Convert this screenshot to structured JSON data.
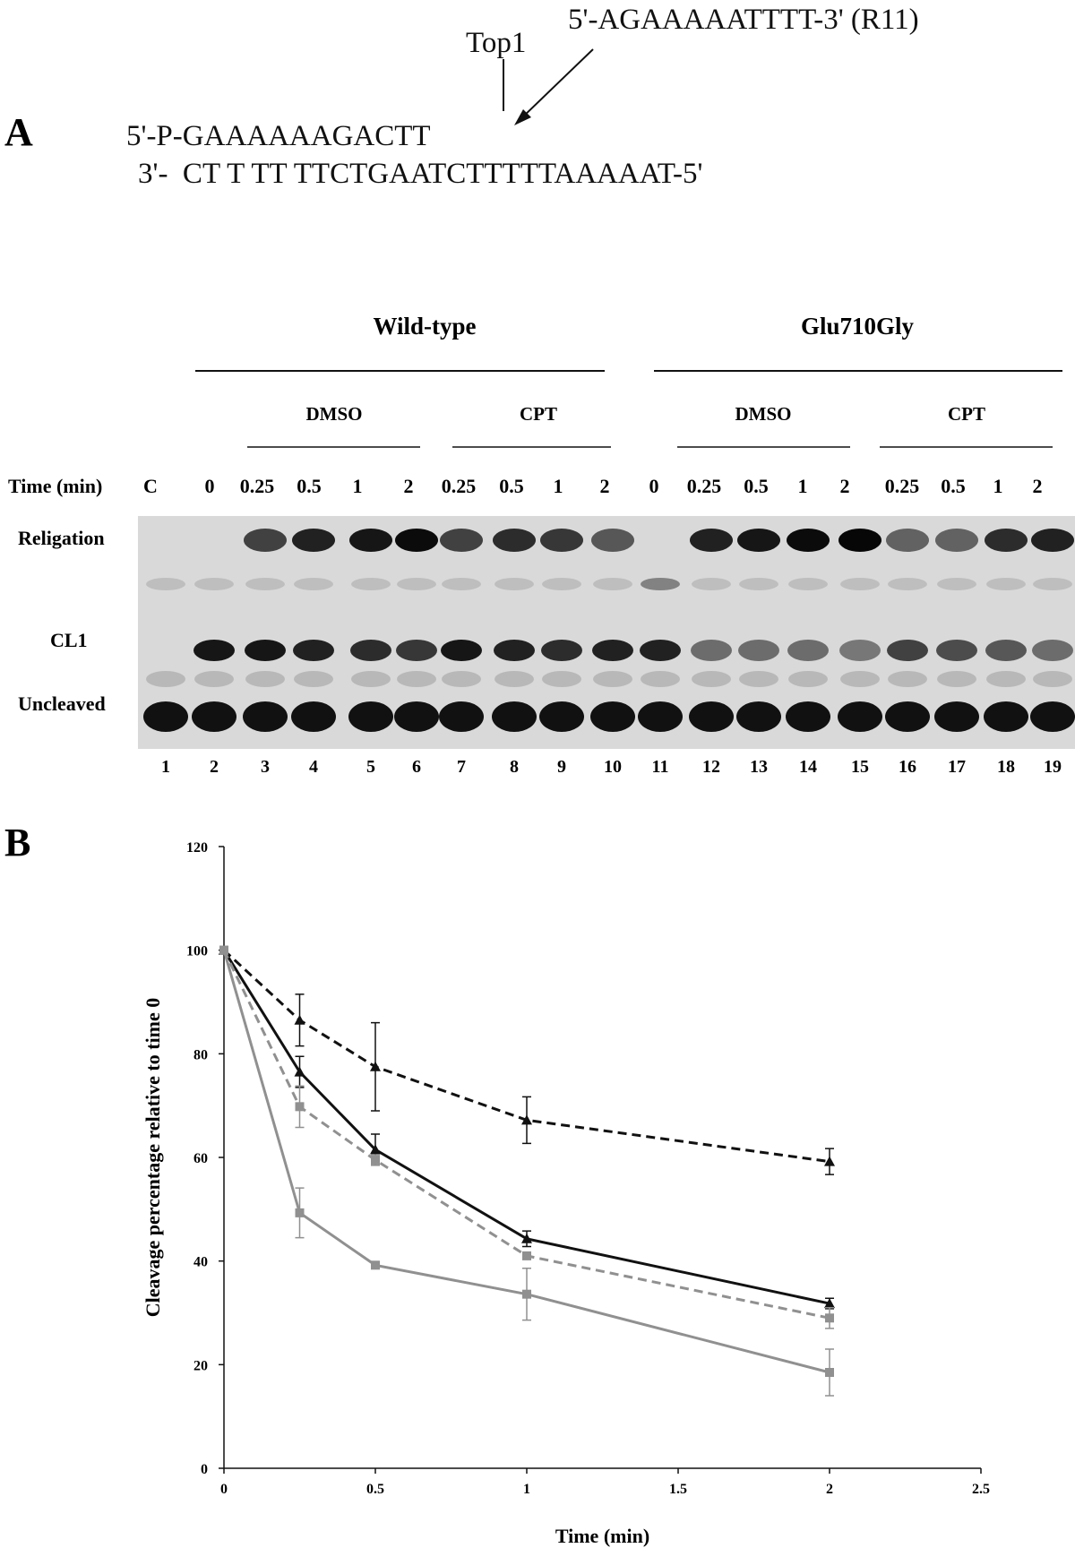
{
  "panel_a": {
    "label": "A",
    "top1": "Top1",
    "r11": "5'-AGAAAAATTTT-3' (R11)",
    "strand_top": "5'-P-GAAAAAAGACTT",
    "strand_bottom": "3'-  CT T TT TTCTGAATCTTTTTAAAAAT-5'",
    "groups": [
      "Wild-type",
      "Glu710Gly"
    ],
    "treatments": [
      "DMSO",
      "CPT",
      "DMSO",
      "CPT"
    ],
    "time_label": "Time (min)",
    "times": [
      "C",
      "0",
      "0.25",
      "0.5",
      "1",
      "2",
      "0.25",
      "0.5",
      "1",
      "2",
      "0",
      "0.25",
      "0.5",
      "1",
      "2",
      "0.25",
      "0.5",
      "1",
      "2"
    ],
    "band_labels": [
      "Religation",
      "CL1",
      "Uncleaved"
    ],
    "lanes": [
      "1",
      "2",
      "3",
      "4",
      "5",
      "6",
      "7",
      "8",
      "9",
      "10",
      "11",
      "12",
      "13",
      "14",
      "15",
      "16",
      "17",
      "18",
      "19"
    ]
  },
  "panel_b_label": "B",
  "chart_data": {
    "type": "line",
    "xlabel": "Time (min)",
    "ylabel": "Cleavage percentage relative to time 0",
    "xlim": [
      0,
      2.5
    ],
    "xticks": [
      0,
      0.5,
      1,
      1.5,
      2,
      2.5
    ],
    "ylim": [
      0,
      120
    ],
    "yticks": [
      0,
      20,
      40,
      60,
      80,
      100,
      120
    ],
    "x": [
      0,
      0.25,
      0.5,
      1,
      2
    ],
    "series": [
      {
        "color": "#111111",
        "dash": true,
        "marker": "triangle",
        "values": [
          100,
          86.5,
          77.5,
          67.2,
          59.2
        ],
        "errors": [
          null,
          5,
          8.5,
          4.5,
          2.5
        ]
      },
      {
        "color": "#111111",
        "dash": false,
        "marker": "triangle",
        "values": [
          100,
          76.5,
          61.5,
          44.3,
          31.8
        ],
        "errors": [
          null,
          3,
          3,
          1.5,
          1
        ]
      },
      {
        "color": "#909090",
        "dash": true,
        "marker": "square",
        "values": [
          100,
          69.8,
          59.5,
          41,
          29
        ],
        "errors": [
          null,
          4,
          1,
          null,
          2
        ]
      },
      {
        "color": "#909090",
        "dash": false,
        "marker": "square",
        "values": [
          100,
          49.3,
          39.2,
          33.6,
          18.5
        ],
        "errors": [
          null,
          4.8,
          null,
          5,
          4.5
        ]
      }
    ]
  }
}
